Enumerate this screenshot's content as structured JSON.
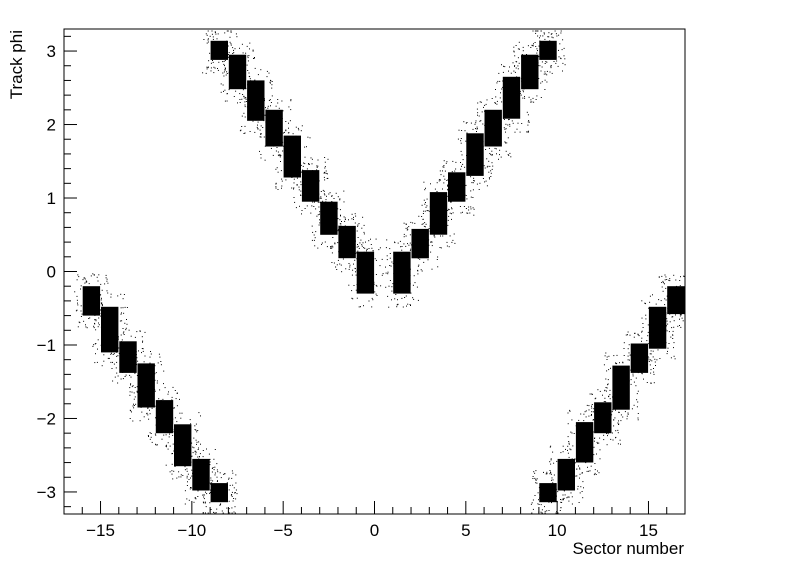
{
  "chart_data": {
    "type": "scatter",
    "title": "",
    "xlabel": "Sector number",
    "ylabel": "Track phi",
    "xlim": [
      -17,
      17
    ],
    "ylim": [
      -3.3,
      3.3
    ],
    "x_ticks": [
      -15,
      -10,
      -5,
      0,
      5,
      10,
      15
    ],
    "y_ticks": [
      -3,
      -2,
      -1,
      0,
      1,
      2,
      3
    ],
    "x_tick_labels": [
      "−15",
      "−10",
      "−5",
      "0",
      "5",
      "10",
      "15"
    ],
    "y_tick_labels": [
      "−3",
      "−2",
      "−1",
      "0",
      "1",
      "2",
      "3"
    ],
    "grid": false,
    "legend": "none",
    "marker_color": "#000000",
    "series": [
      {
        "x": [
          -0.5,
          -1.5,
          -2.5,
          -3.5,
          -4.5,
          -5.5,
          -6.5,
          -7.5,
          -8.5
        ],
        "y_ranges": [
          [
            -0.3,
            0.27
          ],
          [
            0.18,
            0.62
          ],
          [
            0.5,
            0.95
          ],
          [
            0.95,
            1.38
          ],
          [
            1.28,
            1.85
          ],
          [
            1.7,
            2.2
          ],
          [
            2.05,
            2.6
          ],
          [
            2.48,
            2.95
          ],
          [
            2.88,
            3.14
          ]
        ]
      },
      {
        "x": [
          1.5,
          2.5,
          3.5,
          4.5,
          5.5,
          6.5,
          7.5,
          8.5,
          9.5
        ],
        "y_ranges": [
          [
            -0.3,
            0.27
          ],
          [
            0.18,
            0.58
          ],
          [
            0.5,
            1.08
          ],
          [
            0.95,
            1.35
          ],
          [
            1.3,
            1.88
          ],
          [
            1.7,
            2.2
          ],
          [
            2.08,
            2.65
          ],
          [
            2.48,
            2.95
          ],
          [
            2.88,
            3.14
          ]
        ]
      },
      {
        "x": [
          -15.5,
          -14.5,
          -13.5,
          -12.5,
          -11.5,
          -10.5,
          -9.5,
          -8.5
        ],
        "y_ranges": [
          [
            -0.6,
            -0.2
          ],
          [
            -1.1,
            -0.48
          ],
          [
            -1.38,
            -0.95
          ],
          [
            -1.85,
            -1.25
          ],
          [
            -2.2,
            -1.75
          ],
          [
            -2.65,
            -2.08
          ],
          [
            -2.98,
            -2.55
          ],
          [
            -3.14,
            -2.88
          ]
        ]
      },
      {
        "x": [
          9.5,
          10.5,
          11.5,
          12.5,
          13.5,
          14.5,
          15.5,
          16.5
        ],
        "y_ranges": [
          [
            -3.14,
            -2.88
          ],
          [
            -2.98,
            -2.55
          ],
          [
            -2.6,
            -2.05
          ],
          [
            -2.2,
            -1.78
          ],
          [
            -1.88,
            -1.28
          ],
          [
            -1.38,
            -0.98
          ],
          [
            -1.05,
            -0.48
          ],
          [
            -0.58,
            -0.2
          ]
        ]
      }
    ]
  }
}
